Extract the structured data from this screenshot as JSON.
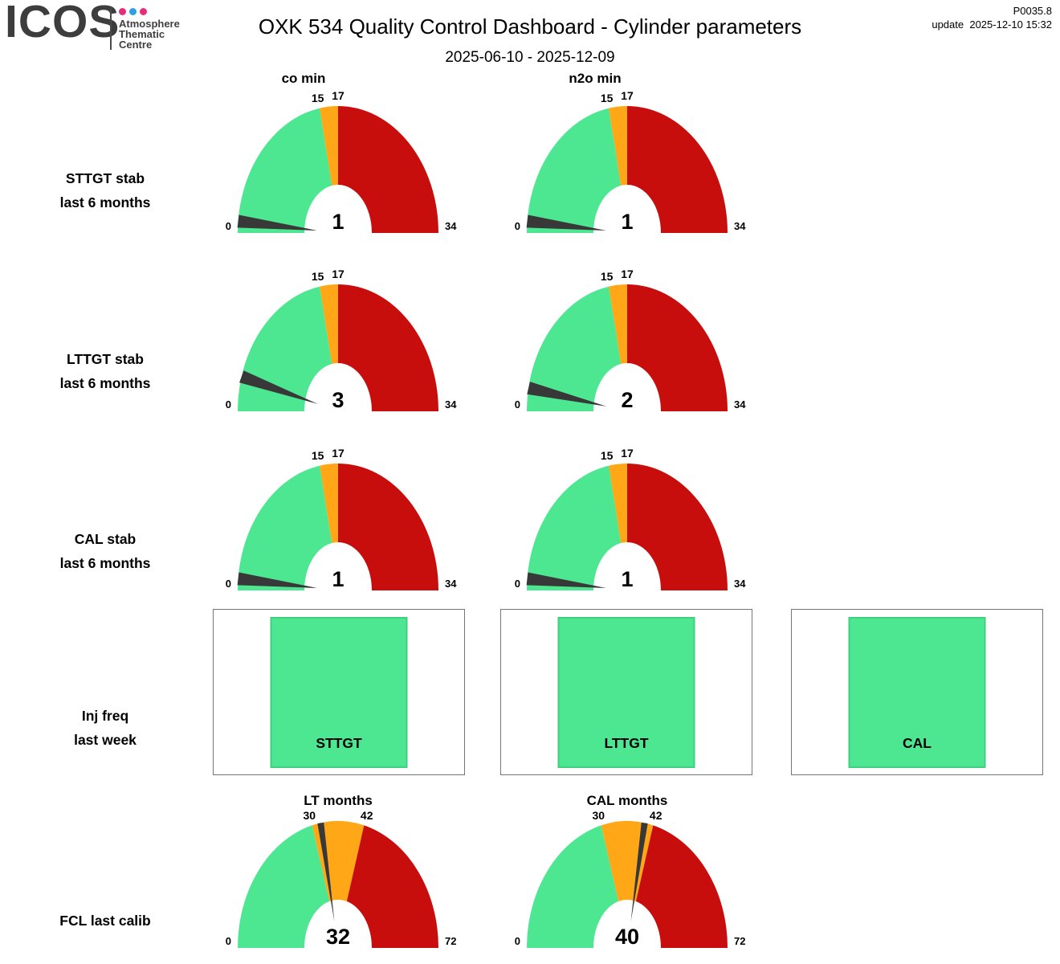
{
  "header": {
    "logo_text": "ICOS",
    "logo_subtitle_lines": [
      "Atmosphere",
      "Thematic",
      "Centre"
    ],
    "logo_dot_colors": [
      "#e82c7b",
      "#2d9fe6",
      "#e82c7b"
    ],
    "title": "OXK 534 Quality Control Dashboard - Cylinder parameters",
    "code": "P0035.8",
    "update_label": "update",
    "update_time": "2025-12-10 15:32",
    "date_range": "2025-06-10 - 2025-12-09"
  },
  "columns": {
    "col1": "co min",
    "col2": "n2o min"
  },
  "rows": {
    "sttgt": {
      "line1": "STTGT stab",
      "line2": "last 6 months"
    },
    "lttgt": {
      "line1": "LTTGT stab",
      "line2": "last 6 months"
    },
    "cal": {
      "line1": "CAL stab",
      "line2": "last 6 months"
    },
    "inj": {
      "line1": "Inj freq",
      "line2": "last week"
    },
    "fcl": {
      "line1": "FCL last calib"
    }
  },
  "colors": {
    "ok_green": "#4de792",
    "warn_orange": "#ffa716",
    "alarm_red": "#c80d0d",
    "needle": "#383838",
    "box_border": "#757575",
    "green_box_border": "#3ecf7f"
  },
  "inj_boxes": [
    {
      "label": "STTGT",
      "status_color": "#4de792"
    },
    {
      "label": "LTTGT",
      "status_color": "#4de792"
    },
    {
      "label": "CAL",
      "status_color": "#4de792"
    }
  ],
  "chart_data": {
    "type": "gauge",
    "date_range": "2025-06-10 - 2025-12-09",
    "gauges": [
      {
        "id": "sttgt-co",
        "row": "STTGT stab last 6 months",
        "column": "co min",
        "value": 1,
        "min": 0,
        "max": 34,
        "ticks": [
          15,
          17
        ],
        "zones": [
          {
            "to": 15,
            "color": "#4de792"
          },
          {
            "to": 17,
            "color": "#ffa716"
          },
          {
            "to": 34,
            "color": "#c80d0d"
          }
        ]
      },
      {
        "id": "sttgt-n2o",
        "row": "STTGT stab last 6 months",
        "column": "n2o min",
        "value": 1,
        "min": 0,
        "max": 34,
        "ticks": [
          15,
          17
        ],
        "zones": [
          {
            "to": 15,
            "color": "#4de792"
          },
          {
            "to": 17,
            "color": "#ffa716"
          },
          {
            "to": 34,
            "color": "#c80d0d"
          }
        ]
      },
      {
        "id": "lttgt-co",
        "row": "LTTGT stab last 6 months",
        "column": "co min",
        "value": 3,
        "min": 0,
        "max": 34,
        "ticks": [
          15,
          17
        ],
        "zones": [
          {
            "to": 15,
            "color": "#4de792"
          },
          {
            "to": 17,
            "color": "#ffa716"
          },
          {
            "to": 34,
            "color": "#c80d0d"
          }
        ]
      },
      {
        "id": "lttgt-n2o",
        "row": "LTTGT stab last 6 months",
        "column": "n2o min",
        "value": 2,
        "min": 0,
        "max": 34,
        "ticks": [
          15,
          17
        ],
        "zones": [
          {
            "to": 15,
            "color": "#4de792"
          },
          {
            "to": 17,
            "color": "#ffa716"
          },
          {
            "to": 34,
            "color": "#c80d0d"
          }
        ]
      },
      {
        "id": "cal-co",
        "row": "CAL stab last 6 months",
        "column": "co min",
        "value": 1,
        "min": 0,
        "max": 34,
        "ticks": [
          15,
          17
        ],
        "zones": [
          {
            "to": 15,
            "color": "#4de792"
          },
          {
            "to": 17,
            "color": "#ffa716"
          },
          {
            "to": 34,
            "color": "#c80d0d"
          }
        ]
      },
      {
        "id": "cal-n2o",
        "row": "CAL stab last 6 months",
        "column": "n2o min",
        "value": 1,
        "min": 0,
        "max": 34,
        "ticks": [
          15,
          17
        ],
        "zones": [
          {
            "to": 15,
            "color": "#4de792"
          },
          {
            "to": 17,
            "color": "#ffa716"
          },
          {
            "to": 34,
            "color": "#c80d0d"
          }
        ]
      },
      {
        "id": "fcl-lt",
        "row": "FCL last calib",
        "title": "LT months",
        "value": 32,
        "min": 0,
        "max": 72,
        "ticks": [
          30,
          42
        ],
        "zones": [
          {
            "to": 30,
            "color": "#4de792"
          },
          {
            "to": 42,
            "color": "#ffa716"
          },
          {
            "to": 72,
            "color": "#c80d0d"
          }
        ]
      },
      {
        "id": "fcl-cal",
        "row": "FCL last calib",
        "title": "CAL months",
        "value": 40,
        "min": 0,
        "max": 72,
        "ticks": [
          30,
          42
        ],
        "zones": [
          {
            "to": 30,
            "color": "#4de792"
          },
          {
            "to": 42,
            "color": "#ffa716"
          },
          {
            "to": 72,
            "color": "#c80d0d"
          }
        ]
      }
    ]
  }
}
